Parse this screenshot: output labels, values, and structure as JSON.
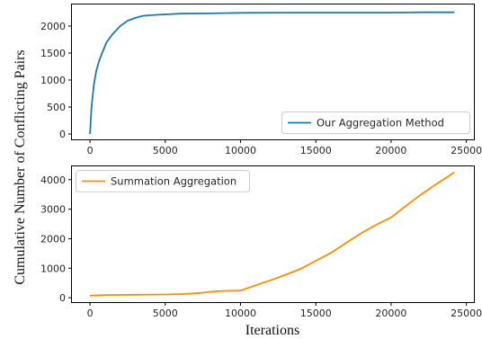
{
  "ylabel": "Cumulative Number of Conflicting Pairs",
  "xlabel": "Iterations",
  "chart_data": [
    {
      "type": "line",
      "xlim": [
        -1200,
        25500
      ],
      "ylim": [
        -100,
        2400
      ],
      "xticks": [
        0,
        5000,
        10000,
        15000,
        20000,
        25000
      ],
      "yticks": [
        0,
        500,
        1000,
        1500,
        2000
      ],
      "grid": false,
      "legend_position": "lower-right",
      "series": [
        {
          "name": "Our Aggregation Method",
          "color": "#1f77b4",
          "x": [
            0,
            100,
            250,
            400,
            600,
            800,
            1100,
            1500,
            2000,
            2500,
            3000,
            3500,
            4500,
            6000,
            8000,
            10000,
            12000,
            14000,
            16000,
            18000,
            20000,
            21000,
            22000,
            24200
          ],
          "y": [
            0,
            500,
            900,
            1150,
            1350,
            1500,
            1700,
            1850,
            2000,
            2100,
            2150,
            2190,
            2210,
            2230,
            2235,
            2245,
            2248,
            2250,
            2250,
            2250,
            2250,
            2252,
            2255,
            2255
          ]
        }
      ]
    },
    {
      "type": "line",
      "xlim": [
        -1200,
        25500
      ],
      "ylim": [
        -150,
        4450
      ],
      "xticks": [
        0,
        5000,
        10000,
        15000,
        20000,
        25000
      ],
      "yticks": [
        0,
        1000,
        2000,
        3000,
        4000
      ],
      "grid": false,
      "legend_position": "upper-left",
      "series": [
        {
          "name": "Summation Aggregation",
          "color": "#ff8c00",
          "x": [
            0,
            1000,
            2000,
            3000,
            4000,
            5000,
            6000,
            7000,
            7500,
            8000,
            8500,
            9000,
            9500,
            10000,
            10500,
            11000,
            11500,
            12000,
            13000,
            14000,
            15000,
            16000,
            17000,
            18000,
            19000,
            20000,
            21000,
            22000,
            23000,
            24000,
            24200
          ],
          "y": [
            70,
            90,
            95,
            100,
            105,
            110,
            120,
            150,
            170,
            200,
            220,
            230,
            235,
            240,
            330,
            420,
            510,
            590,
            780,
            980,
            1250,
            1520,
            1850,
            2180,
            2470,
            2720,
            3120,
            3500,
            3850,
            4180,
            4250
          ]
        }
      ]
    }
  ]
}
